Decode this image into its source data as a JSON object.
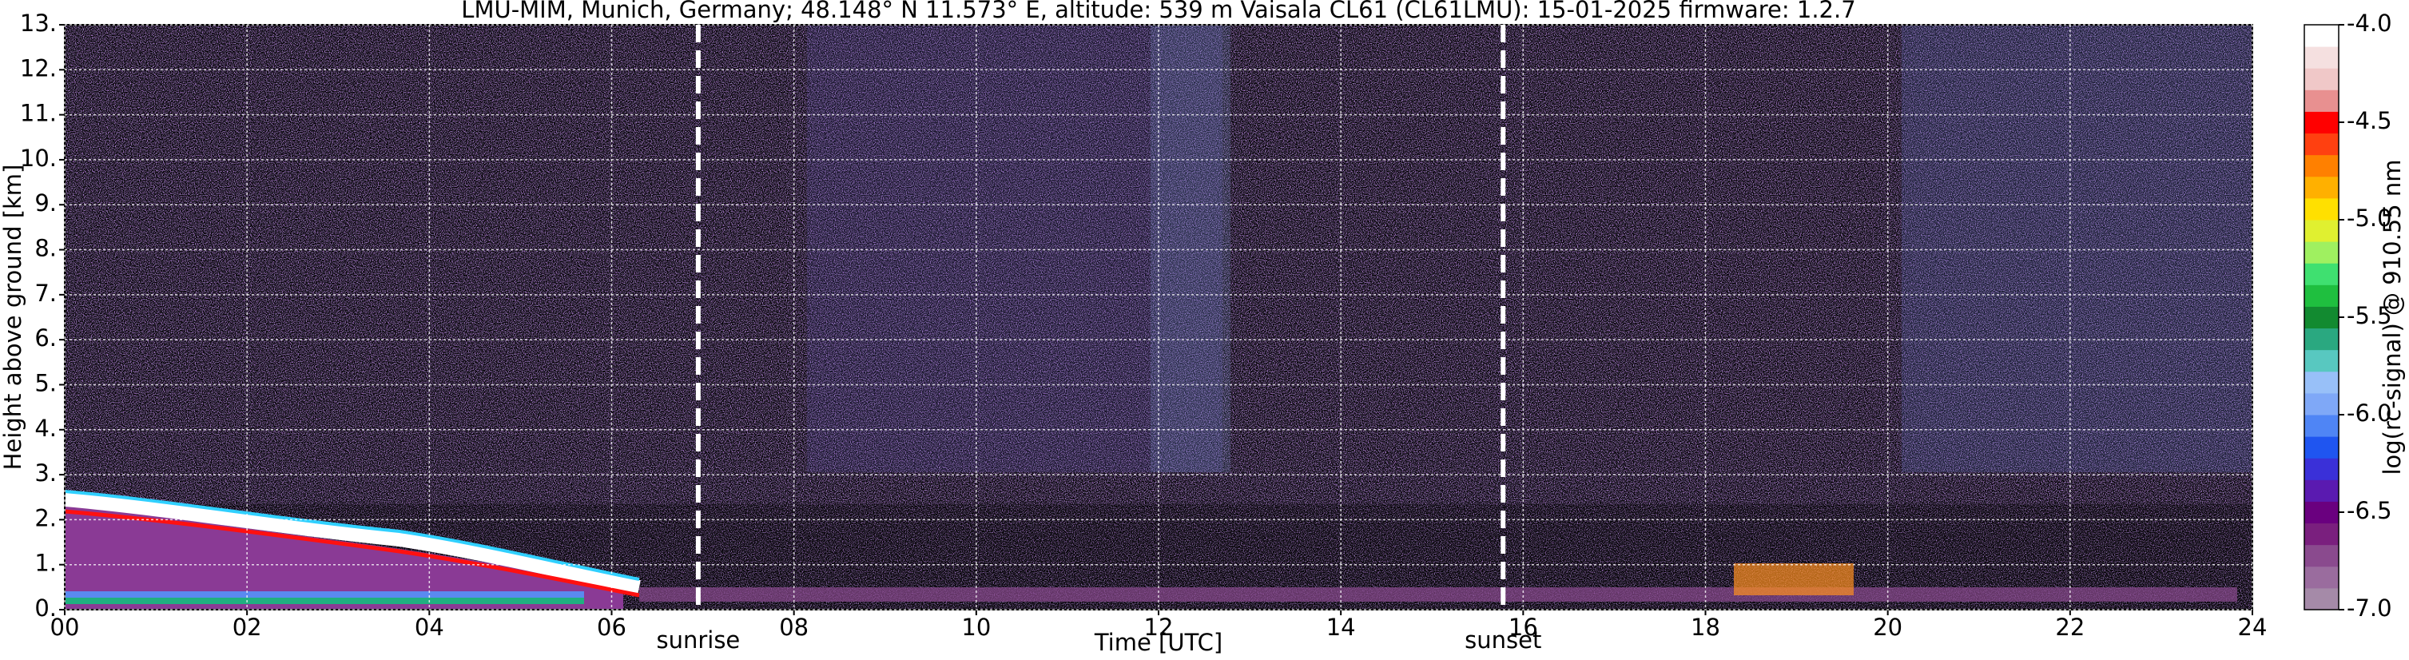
{
  "chart_data": {
    "type": "heatmap",
    "title": "LMU-MIM, Munich, Germany; 48.148° N 11.573° E, altitude: 539 m    Vaisala CL61 (CL61LMU): 15-01-2025    firmware: 1.2.7",
    "x_label": "Time [UTC]",
    "y_label": "Height above ground [km]",
    "xlim": [
      0,
      24
    ],
    "xticks": [
      {
        "value": 0,
        "label": "00"
      },
      {
        "value": 2,
        "label": "02"
      },
      {
        "value": 4,
        "label": "04"
      },
      {
        "value": 6,
        "label": "06"
      },
      {
        "value": 8,
        "label": "08"
      },
      {
        "value": 10,
        "label": "10"
      },
      {
        "value": 12,
        "label": "12"
      },
      {
        "value": 14,
        "label": "14"
      },
      {
        "value": 16,
        "label": "16"
      },
      {
        "value": 18,
        "label": "18"
      },
      {
        "value": 20,
        "label": "20"
      },
      {
        "value": 22,
        "label": "22"
      },
      {
        "value": 24,
        "label": "24"
      }
    ],
    "ylim": [
      0,
      13
    ],
    "yticks": [
      {
        "value": 0,
        "label": "0."
      },
      {
        "value": 1,
        "label": "1."
      },
      {
        "value": 2,
        "label": "2."
      },
      {
        "value": 3,
        "label": "3."
      },
      {
        "value": 4,
        "label": "4."
      },
      {
        "value": 5,
        "label": "5."
      },
      {
        "value": 6,
        "label": "6."
      },
      {
        "value": 7,
        "label": "7."
      },
      {
        "value": 8,
        "label": "8."
      },
      {
        "value": 9,
        "label": "9."
      },
      {
        "value": 10,
        "label": "10."
      },
      {
        "value": 11,
        "label": "11."
      },
      {
        "value": 12,
        "label": "12."
      },
      {
        "value": 13,
        "label": "13."
      }
    ],
    "grid": true,
    "annotations": [
      {
        "text": "sunrise",
        "x": 6.95
      },
      {
        "text": "sunset",
        "x": 15.78
      }
    ],
    "colorbar": {
      "label": "log(rc-signal) @ 910.55 nm",
      "lim": [
        -7,
        -4
      ],
      "ticks": [
        {
          "value": -7,
          "label": "-7.0"
        },
        {
          "value": -6.5,
          "label": "-6.5"
        },
        {
          "value": -6,
          "label": "-6.0"
        },
        {
          "value": -5.5,
          "label": "-5.5"
        },
        {
          "value": -5,
          "label": "-5.0"
        },
        {
          "value": -4.5,
          "label": "-4.5"
        },
        {
          "value": -4,
          "label": "-4.0"
        }
      ],
      "colors": [
        "#a58aa8",
        "#9a6c9e",
        "#8a4a8e",
        "#7a1f7e",
        "#6a007f",
        "#5a1ab0",
        "#3a30d8",
        "#1f55f0",
        "#4f85f5",
        "#7fa8f7",
        "#98c0f8",
        "#58c8c0",
        "#2aa880",
        "#128a30",
        "#1fbf3f",
        "#3fe070",
        "#9ff060",
        "#e0f030",
        "#ffe000",
        "#ffb000",
        "#ff8000",
        "#ff4010",
        "#ff0000",
        "#e89090",
        "#f0c8c8",
        "#f5e0e0",
        "#ffffff"
      ]
    }
  }
}
